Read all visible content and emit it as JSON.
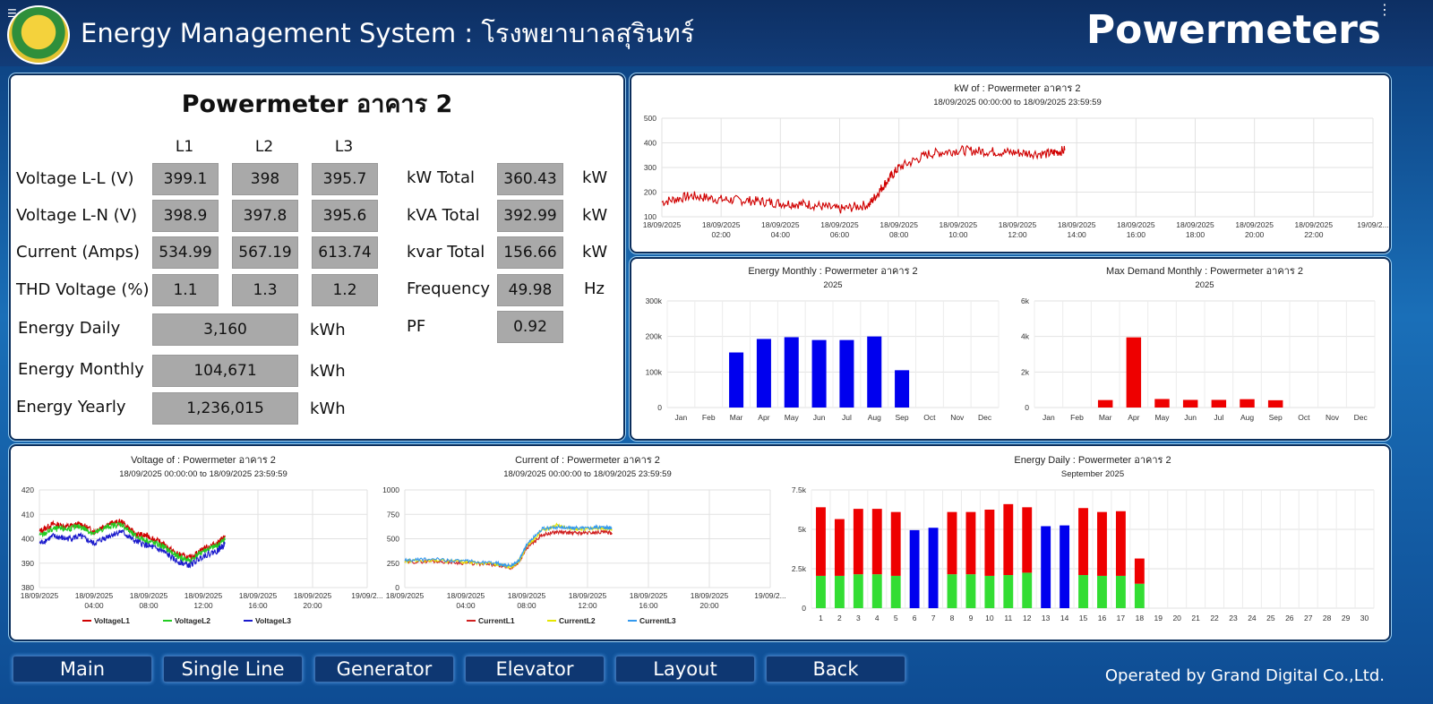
{
  "header": {
    "title": "Energy Management System : โรงพยาบาลสุรินทร์",
    "brand": "Powermeters"
  },
  "meter": {
    "title": "Powermeter อาคาร 2",
    "phase_headers": [
      "L1",
      "L2",
      "L3"
    ],
    "rows": [
      {
        "label": "Voltage L-L (V)",
        "values": [
          "399.1",
          "398",
          "395.7"
        ]
      },
      {
        "label": "Voltage L-N (V)",
        "values": [
          "398.9",
          "397.8",
          "395.6"
        ]
      },
      {
        "label": "Current (Amps)",
        "values": [
          "534.99",
          "567.19",
          "613.74"
        ]
      },
      {
        "label": "THD Voltage (%)",
        "values": [
          "1.1",
          "1.3",
          "1.2"
        ]
      }
    ],
    "energy": [
      {
        "label": "Energy Daily",
        "value": "3,160",
        "unit": "kWh"
      },
      {
        "label": "Energy Monthly",
        "value": "104,671",
        "unit": "kWh"
      },
      {
        "label": "Energy Yearly",
        "value": "1,236,015",
        "unit": "kWh"
      }
    ],
    "totals": [
      {
        "label": "kW Total",
        "value": "360.43",
        "unit": "kW"
      },
      {
        "label": "kVA Total",
        "value": "392.99",
        "unit": "kW"
      },
      {
        "label": "kvar Total",
        "value": "156.66",
        "unit": "kW"
      },
      {
        "label": "Frequency",
        "value": "49.98",
        "unit": "Hz"
      },
      {
        "label": "PF",
        "value": "0.92",
        "unit": ""
      }
    ]
  },
  "nav": [
    "Main",
    "Single Line",
    "Generator",
    "Elevator",
    "Layout",
    "Back"
  ],
  "footer": "Operated by Grand Digital Co.,Ltd.",
  "colors": {
    "header_bg": "#123c78",
    "red": "#e00000",
    "blue": "#0000ee",
    "green": "#33dd33"
  },
  "chart_data": [
    {
      "id": "kw",
      "type": "line",
      "title": "kW of : Powermeter อาคาร 2",
      "subtitle": "18/09/2025 00:00:00 to 18/09/2025 23:59:59",
      "x_ticks": [
        [
          "18/09/2025",
          ""
        ],
        [
          "18/09/2025",
          "02:00"
        ],
        [
          "18/09/2025",
          "04:00"
        ],
        [
          "18/09/2025",
          "06:00"
        ],
        [
          "18/09/2025",
          "08:00"
        ],
        [
          "18/09/2025",
          "10:00"
        ],
        [
          "18/09/2025",
          "12:00"
        ],
        [
          "18/09/2025",
          "14:00"
        ],
        [
          "18/09/2025",
          "16:00"
        ],
        [
          "18/09/2025",
          "18:00"
        ],
        [
          "18/09/2025",
          "20:00"
        ],
        [
          "18/09/2025",
          "22:00"
        ],
        [
          "19/09/2...",
          ""
        ]
      ],
      "y_ticks": [
        "500",
        "400",
        "300",
        "200",
        "100"
      ],
      "ylim": [
        100,
        500
      ],
      "series": [
        {
          "color": "#d00000",
          "x": [
            0,
            1,
            2,
            3,
            4,
            5,
            6,
            7,
            7.5,
            8,
            9,
            10,
            11,
            12,
            13,
            13.6
          ],
          "y": [
            160,
            185,
            170,
            165,
            155,
            150,
            130,
            150,
            230,
            300,
            355,
            370,
            365,
            360,
            355,
            370
          ]
        }
      ]
    },
    {
      "id": "energy_monthly",
      "type": "bar",
      "title": "Energy Monthly : Powermeter อาคาร 2",
      "subtitle": "2025",
      "categories": [
        "Jan",
        "Feb",
        "Mar",
        "Apr",
        "May",
        "Jun",
        "Jul",
        "Aug",
        "Sep",
        "Oct",
        "Nov",
        "Dec"
      ],
      "values": [
        0,
        0,
        155000,
        193000,
        198000,
        190000,
        190000,
        200000,
        105000,
        0,
        0,
        0
      ],
      "y_ticks": [
        "300k",
        "200k",
        "100k",
        "0"
      ],
      "ylim": [
        0,
        300000
      ],
      "color": "#0000ee"
    },
    {
      "id": "max_demand",
      "type": "bar",
      "title": "Max Demand Monthly : Powermeter อาคาร 2",
      "subtitle": "2025",
      "categories": [
        "Jan",
        "Feb",
        "Mar",
        "Apr",
        "May",
        "Jun",
        "Jul",
        "Aug",
        "Sep",
        "Oct",
        "Nov",
        "Dec"
      ],
      "values": [
        0,
        0,
        420,
        3950,
        480,
        430,
        430,
        470,
        410,
        0,
        0,
        0
      ],
      "y_ticks": [
        "6k",
        "4k",
        "2k",
        "0"
      ],
      "ylim": [
        0,
        6000
      ],
      "color": "#ee0000"
    },
    {
      "id": "voltage",
      "type": "line",
      "title": "Voltage of : Powermeter อาคาร 2",
      "subtitle": "18/09/2025 00:00:00 to 18/09/2025 23:59:59",
      "x_ticks": [
        [
          "18/09/2025",
          ""
        ],
        [
          "18/09/2025",
          "04:00"
        ],
        [
          "18/09/2025",
          "08:00"
        ],
        [
          "18/09/2025",
          "12:00"
        ],
        [
          "18/09/2025",
          "16:00"
        ],
        [
          "18/09/2025",
          "20:00"
        ],
        [
          "19/09/2...",
          ""
        ]
      ],
      "y_ticks": [
        "420",
        "410",
        "400",
        "390",
        "380"
      ],
      "ylim": [
        380,
        420
      ],
      "series": [
        {
          "name": "VoltageL1",
          "color": "#d00000",
          "x": [
            0,
            1,
            2,
            3,
            4,
            5,
            6,
            7,
            8,
            9,
            10,
            11,
            12,
            13,
            13.6
          ],
          "y": [
            403,
            406,
            405,
            406,
            403,
            406,
            407,
            402,
            401,
            398,
            394,
            392,
            396,
            398,
            401
          ]
        },
        {
          "name": "VoltageL2",
          "color": "#22cc22",
          "x": [
            0,
            1,
            2,
            3,
            4,
            5,
            6,
            7,
            8,
            9,
            10,
            11,
            12,
            13,
            13.6
          ],
          "y": [
            401,
            404,
            404,
            405,
            402,
            405,
            406,
            401,
            399,
            397,
            393,
            391,
            395,
            397,
            400
          ]
        },
        {
          "name": "VoltageL3",
          "color": "#1a1acc",
          "x": [
            0,
            1,
            2,
            3,
            4,
            5,
            6,
            7,
            8,
            9,
            10,
            11,
            12,
            13,
            13.6
          ],
          "y": [
            398,
            401,
            400,
            401,
            398,
            401,
            403,
            399,
            397,
            395,
            391,
            389,
            393,
            395,
            398
          ]
        }
      ]
    },
    {
      "id": "current",
      "type": "line",
      "title": "Current of : Powermeter อาคาร 2",
      "subtitle": "18/09/2025 00:00:00 to 18/09/2025 23:59:59",
      "x_ticks": [
        [
          "18/09/2025",
          ""
        ],
        [
          "18/09/2025",
          "04:00"
        ],
        [
          "18/09/2025",
          "08:00"
        ],
        [
          "18/09/2025",
          "12:00"
        ],
        [
          "18/09/2025",
          "16:00"
        ],
        [
          "18/09/2025",
          "20:00"
        ],
        [
          "19/09/2...",
          ""
        ]
      ],
      "y_ticks": [
        "1000",
        "750",
        "500",
        "250",
        "0"
      ],
      "ylim": [
        0,
        1000
      ],
      "series": [
        {
          "name": "CurrentL1",
          "color": "#d02020",
          "x": [
            0,
            2,
            4,
            6,
            7,
            7.5,
            8,
            9,
            10,
            11,
            12,
            13,
            13.6
          ],
          "y": [
            260,
            270,
            250,
            230,
            200,
            260,
            400,
            540,
            570,
            560,
            560,
            570,
            560
          ]
        },
        {
          "name": "CurrentL2",
          "color": "#e6e600",
          "x": [
            0,
            2,
            4,
            6,
            7,
            7.5,
            8,
            9,
            10,
            11,
            12,
            13,
            13.6
          ],
          "y": [
            270,
            280,
            260,
            240,
            210,
            270,
            420,
            580,
            640,
            600,
            600,
            610,
            600
          ]
        },
        {
          "name": "CurrentL3",
          "color": "#3399ee",
          "x": [
            0,
            2,
            4,
            6,
            7,
            7.5,
            8,
            9,
            10,
            11,
            12,
            13,
            13.6
          ],
          "y": [
            280,
            290,
            270,
            250,
            220,
            280,
            440,
            600,
            620,
            610,
            610,
            620,
            610
          ]
        }
      ]
    },
    {
      "id": "energy_daily",
      "type": "bar",
      "title": "Energy Daily : Powermeter อาคาร 2",
      "subtitle": "September 2025",
      "categories": [
        "1",
        "2",
        "3",
        "4",
        "5",
        "6",
        "7",
        "8",
        "9",
        "10",
        "11",
        "12",
        "13",
        "14",
        "15",
        "16",
        "17",
        "18",
        "19",
        "20",
        "21",
        "22",
        "23",
        "24",
        "25",
        "26",
        "27",
        "28",
        "29",
        "30"
      ],
      "series": [
        {
          "color": "#33dd33",
          "values": [
            2050,
            2050,
            2150,
            2150,
            2050,
            0,
            0,
            2150,
            2150,
            2050,
            2100,
            2250,
            0,
            0,
            2100,
            2050,
            2050,
            1550,
            0,
            0,
            0,
            0,
            0,
            0,
            0,
            0,
            0,
            0,
            0,
            0
          ]
        },
        {
          "color": "#ee0000",
          "values": [
            4350,
            3600,
            4150,
            4150,
            4050,
            0,
            0,
            3950,
            3950,
            4200,
            4500,
            4150,
            0,
            0,
            4250,
            4050,
            4100,
            1600,
            0,
            0,
            0,
            0,
            0,
            0,
            0,
            0,
            0,
            0,
            0,
            0
          ]
        },
        {
          "color": "#0000ee",
          "values": [
            0,
            0,
            0,
            0,
            0,
            4950,
            5100,
            0,
            0,
            0,
            0,
            0,
            5200,
            5250,
            0,
            0,
            0,
            0,
            0,
            0,
            0,
            0,
            0,
            0,
            0,
            0,
            0,
            0,
            0,
            0
          ]
        }
      ],
      "y_ticks": [
        "7.5k",
        "5k",
        "2.5k",
        "0"
      ],
      "ylim": [
        0,
        7500
      ]
    }
  ]
}
